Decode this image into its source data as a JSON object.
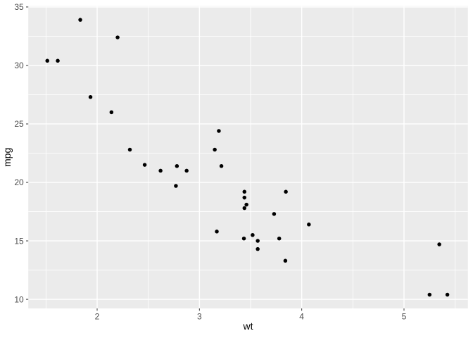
{
  "chart_data": {
    "type": "scatter",
    "title": "",
    "xlabel": "wt",
    "ylabel": "mpg",
    "x_ticks": [
      2,
      3,
      4,
      5
    ],
    "y_ticks": [
      10,
      15,
      20,
      25,
      30,
      35
    ],
    "x_minor_ticks": [
      1.5,
      2.5,
      3.5,
      4.5,
      5.5
    ],
    "y_minor_ticks": [
      12.5,
      17.5,
      22.5,
      27.5,
      32.5
    ],
    "xlim": [
      1.327,
      5.625
    ],
    "ylim": [
      9.223,
      35.073
    ],
    "grid": true,
    "legend_position": "none",
    "points": [
      [
        2.62,
        21.0
      ],
      [
        2.875,
        21.0
      ],
      [
        2.32,
        22.8
      ],
      [
        3.215,
        21.4
      ],
      [
        3.44,
        18.7
      ],
      [
        3.46,
        18.1
      ],
      [
        3.57,
        14.3
      ],
      [
        3.19,
        24.4
      ],
      [
        3.15,
        22.8
      ],
      [
        3.44,
        19.2
      ],
      [
        3.44,
        17.8
      ],
      [
        4.07,
        16.4
      ],
      [
        3.73,
        17.3
      ],
      [
        3.78,
        15.2
      ],
      [
        5.25,
        10.4
      ],
      [
        5.424,
        10.4
      ],
      [
        5.345,
        14.7
      ],
      [
        2.2,
        32.4
      ],
      [
        1.615,
        30.4
      ],
      [
        1.835,
        33.9
      ],
      [
        2.465,
        21.5
      ],
      [
        3.52,
        15.5
      ],
      [
        3.435,
        15.2
      ],
      [
        3.84,
        13.3
      ],
      [
        3.845,
        19.2
      ],
      [
        1.935,
        27.3
      ],
      [
        2.14,
        26.0
      ],
      [
        1.513,
        30.4
      ],
      [
        3.17,
        15.8
      ],
      [
        2.77,
        19.7
      ],
      [
        3.57,
        15.0
      ],
      [
        2.78,
        21.4
      ]
    ]
  },
  "style": {
    "background": "#FFFFFF",
    "panel_bg": "#EBEBEB",
    "grid_color": "#FFFFFF",
    "point_color": "#000000",
    "tick_label_color": "#4D4D4D",
    "axis_title_color": "#000000",
    "tick_mark_color": "#333333"
  }
}
